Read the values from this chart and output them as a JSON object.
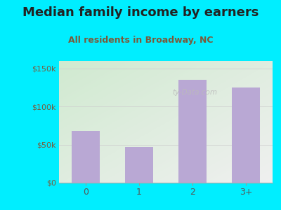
{
  "title": "Median family income by earners",
  "subtitle": "All residents in Broadway, NC",
  "categories": [
    "0",
    "1",
    "2",
    "3+"
  ],
  "values": [
    68000,
    47000,
    135000,
    125000
  ],
  "bar_color": "#b9a8d4",
  "outer_bg": "#00eeff",
  "plot_bg_topleft": "#d0ead0",
  "plot_bg_bottomright": "#f0f0f0",
  "title_color": "#222222",
  "subtitle_color": "#7a5a3a",
  "ytick_label_color": "#7a5a3a",
  "xtick_label_color": "#555555",
  "ytick_labels": [
    "$0",
    "$50k",
    "$100k",
    "$150k"
  ],
  "ytick_values": [
    0,
    50000,
    100000,
    150000
  ],
  "ylim": [
    0,
    160000
  ],
  "title_fontsize": 13,
  "subtitle_fontsize": 9,
  "watermark": "ty-Data.com",
  "watermark_color": "#bbbbbb"
}
